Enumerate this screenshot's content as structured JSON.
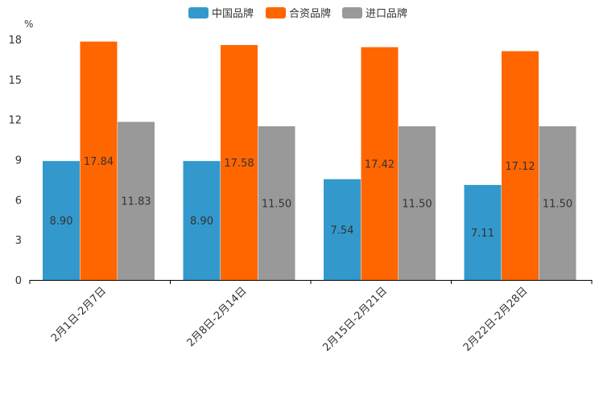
{
  "chart_data": {
    "type": "bar",
    "title": "",
    "xlabel": "",
    "ylabel": "%",
    "ylim": [
      0,
      18
    ],
    "yticks": [
      0,
      3,
      6,
      9,
      12,
      15,
      18
    ],
    "categories": [
      "2月1日-2月7日",
      "2月8日-2月14日",
      "2月15日-2月21日",
      "2月22日-2月28日"
    ],
    "series": [
      {
        "name": "中国品牌",
        "color": "#3399cc",
        "values": [
          8.9,
          8.9,
          7.54,
          7.11
        ],
        "labels": [
          "8.90",
          "8.90",
          "7.54",
          "7.11"
        ]
      },
      {
        "name": "合资品牌",
        "color": "#ff6600",
        "values": [
          17.84,
          17.58,
          17.42,
          17.12
        ],
        "labels": [
          "17.84",
          "17.58",
          "17.42",
          "17.12"
        ]
      },
      {
        "name": "进口品牌",
        "color": "#999999",
        "values": [
          11.83,
          11.5,
          11.5,
          11.5
        ],
        "labels": [
          "11.83",
          "11.50",
          "11.50",
          "11.50"
        ]
      }
    ],
    "legend_position": "top-center",
    "grid": false
  }
}
